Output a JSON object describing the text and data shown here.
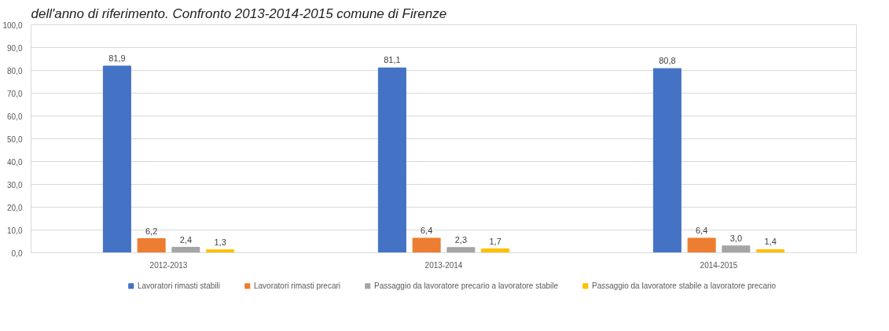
{
  "chart_data": {
    "type": "bar",
    "title": "dell'anno di riferimento. Confronto 2013-2014-2015 comune di Firenze",
    "categories": [
      "2012-2013",
      "2013-2014",
      "2014-2015"
    ],
    "series": [
      {
        "name": "Lavoratori rimasti stabili",
        "color": "#4472c4",
        "values": [
          81.9,
          81.1,
          80.8
        ],
        "value_labels": [
          "81,9",
          "81,1",
          "80,8"
        ]
      },
      {
        "name": "Lavoratori rimasti precari",
        "color": "#ed7d31",
        "values": [
          6.2,
          6.4,
          6.4
        ],
        "value_labels": [
          "6,2",
          "6,4",
          "6,4"
        ]
      },
      {
        "name": "Passaggio da lavoratore precario a lavoratore stabile",
        "color": "#a5a5a5",
        "values": [
          2.4,
          2.3,
          3.0
        ],
        "value_labels": [
          "2,4",
          "2,3",
          "3,0"
        ]
      },
      {
        "name": "Passaggio da lavoratore stabile a lavoratore precario",
        "color": "#ffc000",
        "values": [
          1.3,
          1.7,
          1.4
        ],
        "value_labels": [
          "1,3",
          "1,7",
          "1,4"
        ]
      }
    ],
    "ylim": [
      0,
      100
    ],
    "yticks": [
      {
        "value": 0,
        "label": "0,0"
      },
      {
        "value": 10,
        "label": "10,0"
      },
      {
        "value": 20,
        "label": "20,0"
      },
      {
        "value": 30,
        "label": "30,0"
      },
      {
        "value": 40,
        "label": "40,0"
      },
      {
        "value": 50,
        "label": "50,0"
      },
      {
        "value": 60,
        "label": "60,0"
      },
      {
        "value": 70,
        "label": "70,0"
      },
      {
        "value": 80,
        "label": "80,0"
      },
      {
        "value": 90,
        "label": "90,0"
      },
      {
        "value": 100,
        "label": "100,0"
      }
    ],
    "grid": "y",
    "legend": "bottom"
  }
}
